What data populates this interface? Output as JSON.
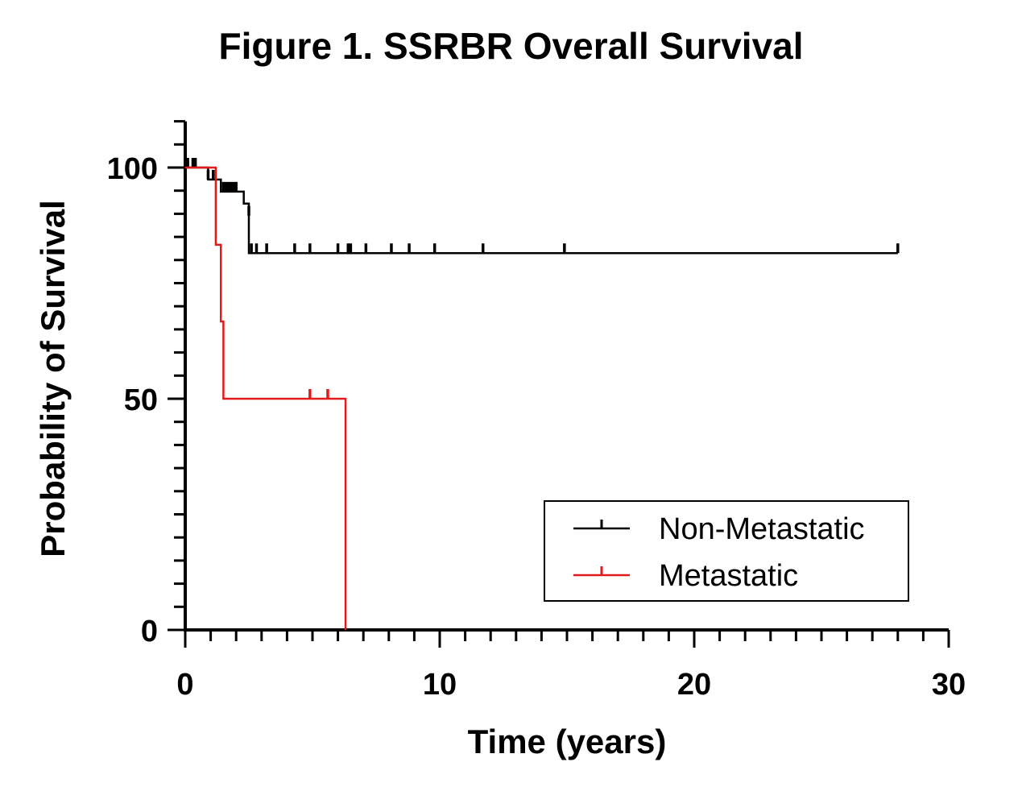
{
  "chart_data": {
    "type": "line",
    "subtype": "kaplan-meier step curve",
    "title": "Figure 1. SSRBR Overall Survival",
    "xlabel": "Time (years)",
    "ylabel": "Probability of Survival",
    "xlim": [
      0,
      30
    ],
    "ylim": [
      0,
      110
    ],
    "x_ticks": [
      0,
      10,
      20,
      30
    ],
    "y_ticks": [
      0,
      50,
      100
    ],
    "grid": false,
    "legend_position": "bottom-right",
    "series": [
      {
        "name": "Non-Metastatic",
        "color": "#000000",
        "steps": [
          [
            0,
            100
          ],
          [
            0.9,
            97.4
          ],
          [
            1.4,
            94.8
          ],
          [
            2.3,
            92.2
          ],
          [
            2.5,
            89.6
          ],
          [
            2.5,
            81.5
          ],
          [
            28,
            81.5
          ]
        ],
        "censored": [
          [
            0.1,
            100
          ],
          [
            0.3,
            100
          ],
          [
            0.4,
            100
          ],
          [
            0.9,
            97.4
          ],
          [
            1.1,
            97.4
          ],
          [
            1.5,
            94.8
          ],
          [
            1.6,
            94.8
          ],
          [
            1.7,
            94.8
          ],
          [
            1.8,
            94.8
          ],
          [
            1.9,
            94.8
          ],
          [
            2.0,
            94.8
          ],
          [
            2.5,
            89.6
          ],
          [
            2.6,
            81.5
          ],
          [
            2.8,
            81.5
          ],
          [
            3.2,
            81.5
          ],
          [
            4.3,
            81.5
          ],
          [
            4.9,
            81.5
          ],
          [
            6.0,
            81.5
          ],
          [
            6.4,
            81.5
          ],
          [
            6.5,
            81.5
          ],
          [
            7.1,
            81.5
          ],
          [
            8.1,
            81.5
          ],
          [
            8.8,
            81.5
          ],
          [
            9.8,
            81.5
          ],
          [
            11.7,
            81.5
          ],
          [
            14.9,
            81.5
          ],
          [
            28,
            81.5
          ]
        ]
      },
      {
        "name": "Metastatic",
        "color": "#e31a1c",
        "steps": [
          [
            0,
            100
          ],
          [
            1.2,
            83.3
          ],
          [
            1.4,
            66.7
          ],
          [
            1.5,
            50
          ],
          [
            6.3,
            0
          ]
        ],
        "censored": [
          [
            4.9,
            50
          ],
          [
            5.6,
            50
          ]
        ]
      }
    ]
  }
}
